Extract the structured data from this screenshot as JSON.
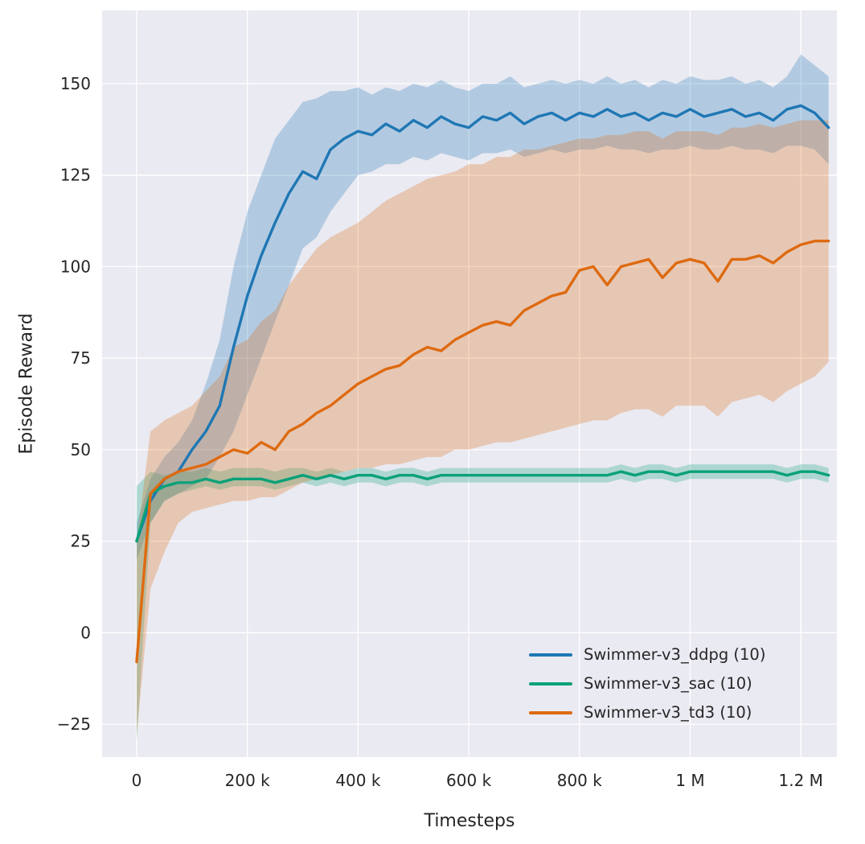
{
  "styles": {
    "figure_bg": "#ffffff",
    "plot_bg": "#eaeaf2",
    "grid_color": "#ffffff",
    "text_color": "#262626"
  },
  "chart_data": {
    "type": "line",
    "title": "",
    "xlabel": "Timesteps",
    "ylabel": "Episode Reward",
    "grid": true,
    "legend_position": "lower right",
    "xlim": [
      -62500,
      1265000
    ],
    "ylim": [
      -34,
      170
    ],
    "band_alpha": 0.27,
    "x_ticks": [
      {
        "value": 0,
        "label": "0"
      },
      {
        "value": 200000,
        "label": "200 k"
      },
      {
        "value": 400000,
        "label": "400 k"
      },
      {
        "value": 600000,
        "label": "600 k"
      },
      {
        "value": 800000,
        "label": "800 k"
      },
      {
        "value": 1000000,
        "label": "1 M"
      },
      {
        "value": 1200000,
        "label": "1.2 M"
      }
    ],
    "y_ticks": [
      {
        "value": -25,
        "label": "−25"
      },
      {
        "value": 0,
        "label": "0"
      },
      {
        "value": 25,
        "label": "25"
      },
      {
        "value": 50,
        "label": "50"
      },
      {
        "value": 75,
        "label": "75"
      },
      {
        "value": 100,
        "label": "100"
      },
      {
        "value": 125,
        "label": "125"
      },
      {
        "value": 150,
        "label": "150"
      }
    ],
    "x": [
      0,
      25000,
      50000,
      75000,
      100000,
      125000,
      150000,
      175000,
      200000,
      225000,
      250000,
      275000,
      300000,
      325000,
      350000,
      375000,
      400000,
      425000,
      450000,
      475000,
      500000,
      525000,
      550000,
      575000,
      600000,
      625000,
      650000,
      675000,
      700000,
      725000,
      750000,
      775000,
      800000,
      825000,
      850000,
      875000,
      900000,
      925000,
      950000,
      975000,
      1000000,
      1025000,
      1050000,
      1075000,
      1100000,
      1125000,
      1150000,
      1175000,
      1200000,
      1225000,
      1250000
    ],
    "series": [
      {
        "name": "Swimmer-v3_ddpg (10)",
        "color": "#1f77b4",
        "y": [
          25,
          36,
          42,
          44,
          50,
          55,
          62,
          78,
          92,
          103,
          112,
          120,
          126,
          124,
          132,
          135,
          137,
          136,
          139,
          137,
          140,
          138,
          141,
          139,
          138,
          141,
          140,
          142,
          139,
          141,
          142,
          140,
          142,
          141,
          143,
          141,
          142,
          140,
          142,
          141,
          143,
          141,
          142,
          143,
          141,
          142,
          140,
          143,
          144,
          142,
          138
        ],
        "lo": [
          20,
          30,
          36,
          38,
          40,
          42,
          48,
          55,
          65,
          75,
          85,
          95,
          105,
          108,
          115,
          120,
          125,
          126,
          128,
          128,
          130,
          129,
          131,
          130,
          129,
          131,
          131,
          132,
          130,
          131,
          132,
          131,
          132,
          132,
          133,
          132,
          132,
          131,
          132,
          132,
          133,
          132,
          132,
          133,
          132,
          132,
          131,
          133,
          133,
          132,
          128
        ],
        "hi": [
          30,
          42,
          48,
          52,
          58,
          68,
          80,
          100,
          115,
          125,
          135,
          140,
          145,
          146,
          148,
          148,
          149,
          147,
          149,
          148,
          150,
          149,
          151,
          149,
          148,
          150,
          150,
          152,
          149,
          150,
          151,
          150,
          151,
          150,
          152,
          150,
          151,
          149,
          151,
          150,
          152,
          151,
          151,
          152,
          150,
          151,
          149,
          152,
          158,
          155,
          152
        ]
      },
      {
        "name": "Swimmer-v3_sac (10)",
        "color": "#0aa179",
        "y": [
          25,
          38,
          40,
          41,
          41,
          42,
          41,
          42,
          42,
          42,
          41,
          42,
          43,
          42,
          43,
          42,
          43,
          43,
          42,
          43,
          43,
          42,
          43,
          43,
          43,
          43,
          43,
          43,
          43,
          43,
          43,
          43,
          43,
          43,
          43,
          44,
          43,
          44,
          44,
          43,
          44,
          44,
          44,
          44,
          44,
          44,
          44,
          43,
          44,
          44,
          43
        ],
        "lo": [
          -30,
          30,
          36,
          38,
          39,
          40,
          39,
          40,
          40,
          40,
          39,
          40,
          41,
          40,
          41,
          40,
          41,
          41,
          40,
          41,
          41,
          40,
          41,
          41,
          41,
          41,
          41,
          41,
          41,
          41,
          41,
          41,
          41,
          41,
          41,
          42,
          41,
          42,
          42,
          41,
          42,
          42,
          42,
          42,
          42,
          42,
          42,
          41,
          42,
          42,
          41
        ],
        "hi": [
          40,
          44,
          43,
          44,
          44,
          45,
          44,
          45,
          45,
          45,
          44,
          45,
          45,
          44,
          45,
          44,
          45,
          45,
          44,
          45,
          45,
          44,
          45,
          45,
          45,
          45,
          45,
          45,
          45,
          45,
          45,
          45,
          45,
          45,
          45,
          46,
          45,
          46,
          46,
          45,
          46,
          46,
          46,
          46,
          46,
          46,
          46,
          45,
          46,
          46,
          45
        ]
      },
      {
        "name": "Swimmer-v3_td3 (10)",
        "color": "#de6a10",
        "y": [
          -8,
          38,
          42,
          44,
          45,
          46,
          48,
          50,
          49,
          52,
          50,
          55,
          57,
          60,
          62,
          65,
          68,
          70,
          72,
          73,
          76,
          78,
          77,
          80,
          82,
          84,
          85,
          84,
          88,
          90,
          92,
          93,
          99,
          100,
          95,
          100,
          101,
          102,
          97,
          101,
          102,
          101,
          96,
          102,
          102,
          103,
          101,
          104,
          106,
          107,
          107
        ],
        "lo": [
          -28,
          12,
          22,
          30,
          33,
          34,
          35,
          36,
          36,
          37,
          37,
          39,
          41,
          42,
          43,
          44,
          45,
          45,
          46,
          46,
          47,
          48,
          48,
          50,
          50,
          51,
          52,
          52,
          53,
          54,
          55,
          56,
          57,
          58,
          58,
          60,
          61,
          61,
          59,
          62,
          62,
          62,
          59,
          63,
          64,
          65,
          63,
          66,
          68,
          70,
          74
        ],
        "hi": [
          25,
          55,
          58,
          60,
          62,
          66,
          70,
          78,
          80,
          85,
          88,
          95,
          100,
          105,
          108,
          110,
          112,
          115,
          118,
          120,
          122,
          124,
          125,
          126,
          128,
          128,
          130,
          130,
          132,
          132,
          133,
          134,
          135,
          135,
          136,
          136,
          137,
          137,
          135,
          137,
          137,
          137,
          136,
          138,
          138,
          139,
          138,
          139,
          140,
          140,
          140
        ]
      }
    ]
  }
}
